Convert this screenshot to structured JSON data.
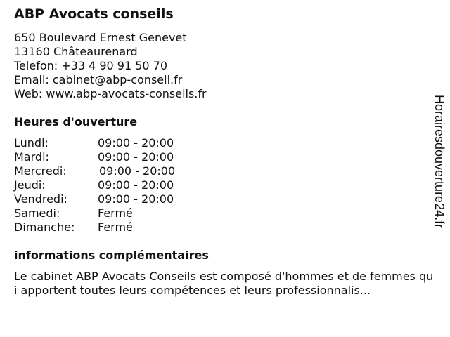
{
  "business": {
    "name": "ABP Avocats conseils",
    "address_line1": "650 Boulevard Ernest Genevet",
    "address_line2": "13160 Châteaurenard",
    "phone": "Telefon: +33 4 90 91 50 70",
    "email": "Email: cabinet@abp-conseil.fr",
    "web": "Web: www.abp-avocats-conseils.fr"
  },
  "hours": {
    "heading": "Heures d'ouverture",
    "days": [
      {
        "day": "Lundi:",
        "time": "09:00 - 20:00"
      },
      {
        "day": "Mardi:",
        "time": "09:00 - 20:00"
      },
      {
        "day": "Mercredi:",
        "time": "09:00 - 20:00"
      },
      {
        "day": "Jeudi:",
        "time": "09:00 - 20:00"
      },
      {
        "day": "Vendredi:",
        "time": "09:00 - 20:00"
      },
      {
        "day": "Samedi:",
        "time": "Fermé"
      },
      {
        "day": "Dimanche:",
        "time": "Fermé"
      }
    ]
  },
  "info": {
    "heading": "informations complémentaires",
    "text": "Le cabinet ABP Avocats Conseils est composé d'hommes et de femmes qui apportent toutes leurs compétences et leurs professionnalis..."
  },
  "watermark": "Horairesdouverture24.fr"
}
